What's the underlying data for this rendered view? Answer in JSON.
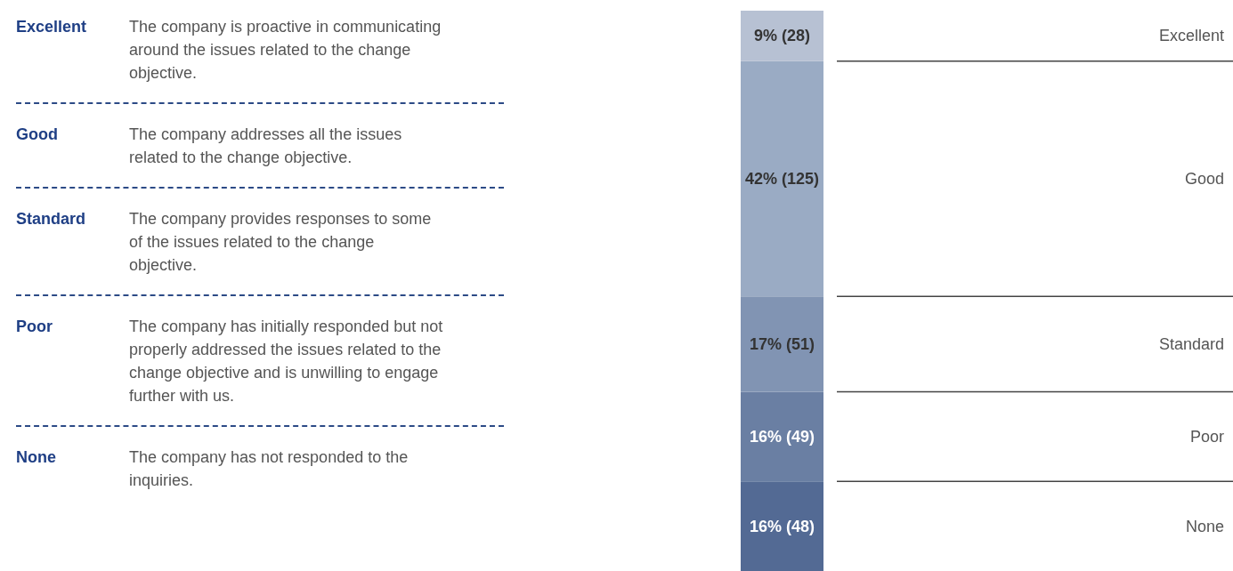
{
  "chart_data": {
    "type": "bar",
    "stacked": true,
    "categories": [
      null
    ],
    "series": [
      {
        "name": "None",
        "color": "#536a94",
        "values": [
          16
        ],
        "value_labels": [
          "16% (48)"
        ]
      },
      {
        "name": "Poor",
        "color": "#6a7fa3",
        "values": [
          16
        ],
        "value_labels": [
          "16% (49)"
        ]
      },
      {
        "name": "Standard",
        "color": "#8194b3",
        "values": [
          17
        ],
        "value_labels": [
          "17% (51)"
        ]
      },
      {
        "name": "Good",
        "color": "#9aabc4",
        "values": [
          42
        ],
        "value_labels": [
          "42% (125)"
        ]
      },
      {
        "name": "Excellent",
        "color": "#b7c1d3",
        "values": [
          9
        ],
        "value_labels": [
          "9% (28)"
        ]
      }
    ],
    "annotations": [
      "The company is proactive in communicating around the issues related to the change objective.",
      "The company addresses all the issues related to the change objective.",
      "The company provides responses to some of the issues related to the change objective.",
      "The company has initially responded but not properly addressed the issues related to the change objective and is unwilling to engage further with us.",
      "The company has not responded to the inquiries."
    ],
    "legend": false
  }
}
